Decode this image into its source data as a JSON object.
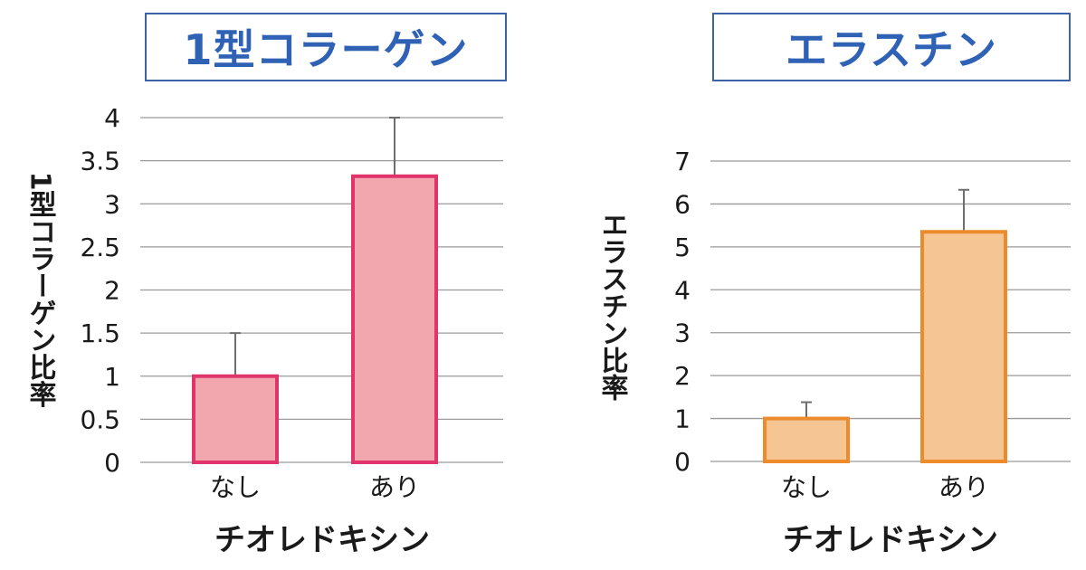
{
  "colors": {
    "title_border": "#3a63a8",
    "title_text": "#2f62b5",
    "grid": "#9a9a9a",
    "errorbar": "#6e6e6e",
    "collagen_fill": "#f2a7ae",
    "collagen_stroke": "#e0356a",
    "elastin_fill": "#f6c594",
    "elastin_stroke": "#ec8a2c"
  },
  "chart_data": [
    {
      "type": "bar",
      "title": "1型コラーゲン",
      "categories": [
        "なし",
        "あり"
      ],
      "values": [
        1.0,
        3.32
      ],
      "error_upper": [
        1.5,
        4.0
      ],
      "xlabel": "チオレドキシン",
      "ylabel": "1型コラーゲン比率",
      "ylim": [
        0,
        4
      ],
      "yticks": [
        "0",
        "0.5",
        "1",
        "1.5",
        "2",
        "2.5",
        "3",
        "3.5",
        "4"
      ],
      "ytick_values": [
        0,
        0.5,
        1,
        1.5,
        2,
        2.5,
        3,
        3.5,
        4
      ],
      "grid": true
    },
    {
      "type": "bar",
      "title": "エラスチン",
      "categories": [
        "なし",
        "あり"
      ],
      "values": [
        1.0,
        5.35
      ],
      "error_upper": [
        1.38,
        6.33
      ],
      "xlabel": "チオレドキシン",
      "ylabel": "エラスチン比率",
      "ylim": [
        0,
        7
      ],
      "yticks": [
        "0",
        "1",
        "2",
        "3",
        "4",
        "5",
        "6",
        "7"
      ],
      "ytick_values": [
        0,
        1,
        2,
        3,
        4,
        5,
        6,
        7
      ],
      "grid": true
    }
  ]
}
